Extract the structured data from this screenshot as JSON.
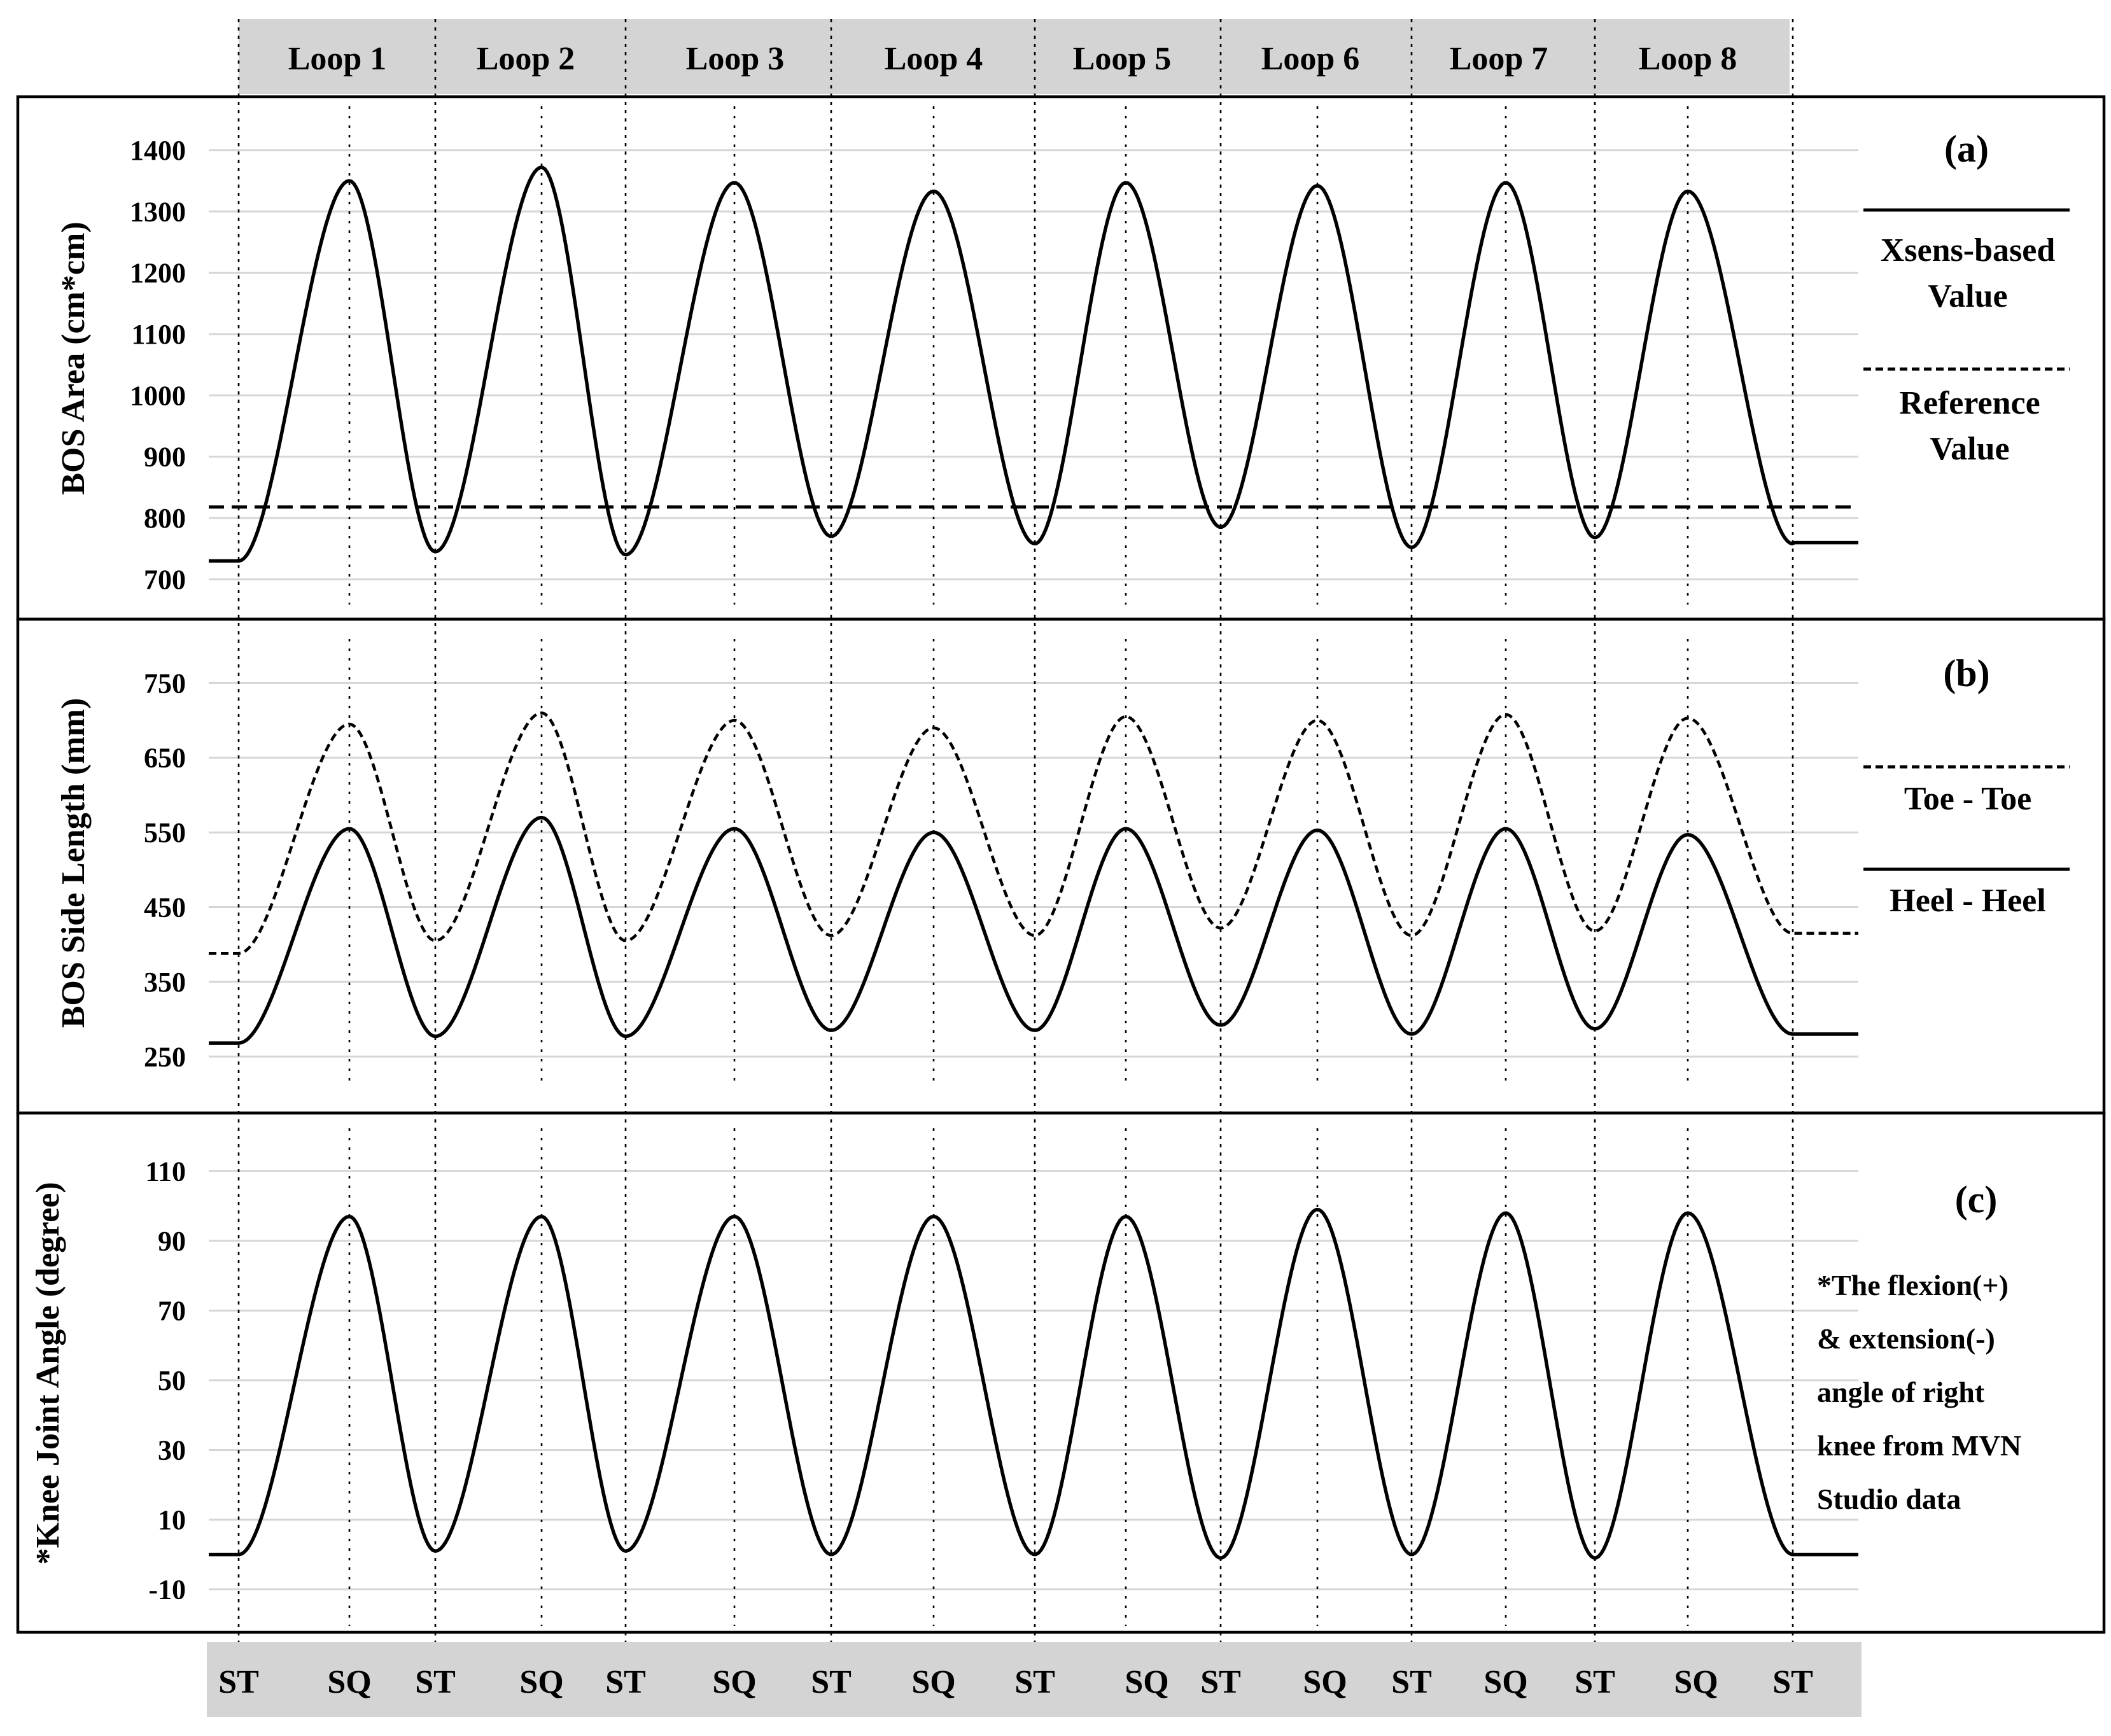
{
  "loops": [
    "Loop 1",
    "Loop 2",
    "Loop 3",
    "Loop 4",
    "Loop 5",
    "Loop 6",
    "Loop 7",
    "Loop 8"
  ],
  "phases": [
    "ST",
    "SQ",
    "ST",
    "SQ",
    "ST",
    "SQ",
    "ST",
    "SQ",
    "ST",
    "SQ",
    "ST",
    "SQ",
    "ST",
    "SQ",
    "ST",
    "SQ",
    "ST"
  ],
  "chart_data": [
    {
      "panel": "(a)",
      "type": "line",
      "ylabel": "BOS Area (cm*cm)",
      "ylim": [
        690,
        1430
      ],
      "yticks": [
        "700",
        "800",
        "900",
        "1000",
        "1100",
        "1200",
        "1300",
        "1400"
      ],
      "grid": true,
      "legend": "right",
      "series": [
        {
          "name": "Xsens-based Value",
          "style": "solid",
          "start_value": 730,
          "min_values": [
            745,
            740,
            770,
            758,
            785,
            752,
            768,
            758
          ],
          "peak_values": [
            1350,
            1372,
            1347,
            1333,
            1347,
            1342,
            1347,
            1333
          ],
          "end_value": 760
        },
        {
          "name": "Reference Value",
          "style": "dashed",
          "constant": 818
        }
      ],
      "legend_entries": [
        "Xsens-based Value",
        "Reference Value"
      ]
    },
    {
      "panel": "(b)",
      "type": "line",
      "ylabel": "BOS Side Length (mm)",
      "ylim": [
        240,
        775
      ],
      "yticks": [
        "250",
        "350",
        "450",
        "550",
        "650",
        "750"
      ],
      "grid": true,
      "legend": "right",
      "series": [
        {
          "name": "Toe - Toe",
          "style": "dashed",
          "start_value": 388,
          "min_values": [
            405,
            405,
            412,
            412,
            422,
            412,
            418,
            415
          ],
          "peak_values": [
            695,
            710,
            700,
            690,
            705,
            700,
            708,
            703
          ],
          "end_value": 415
        },
        {
          "name": "Heel - Heel",
          "style": "solid",
          "start_value": 268,
          "min_values": [
            277,
            277,
            285,
            285,
            292,
            280,
            287,
            280
          ],
          "peak_values": [
            555,
            570,
            555,
            550,
            555,
            553,
            555,
            547
          ],
          "end_value": 280
        }
      ],
      "legend_entries": [
        "Toe - Toe",
        "Heel - Heel"
      ]
    },
    {
      "panel": "(c)",
      "type": "line",
      "ylabel": "*Knee Joint Angle (degree)",
      "ylim": [
        -15,
        115
      ],
      "yticks": [
        "110",
        "90",
        "70",
        "50",
        "30",
        "10",
        "-10"
      ],
      "grid": true,
      "series": [
        {
          "style": "solid",
          "start_value": 0,
          "min_values": [
            1,
            1,
            0,
            0,
            -1,
            0,
            -1,
            0
          ],
          "peak_values": [
            97,
            97,
            97,
            97,
            97,
            99,
            98,
            98
          ],
          "end_value": 0
        }
      ],
      "note_lines": [
        "*The flexion(+)",
        "& extension(-)",
        "angle of right",
        "knee from MVN",
        "Studio data"
      ]
    }
  ],
  "colors": {
    "line": "#000000",
    "banner": "#d4d4d4",
    "grid": "#d6d6d6",
    "background": "#ffffff"
  }
}
